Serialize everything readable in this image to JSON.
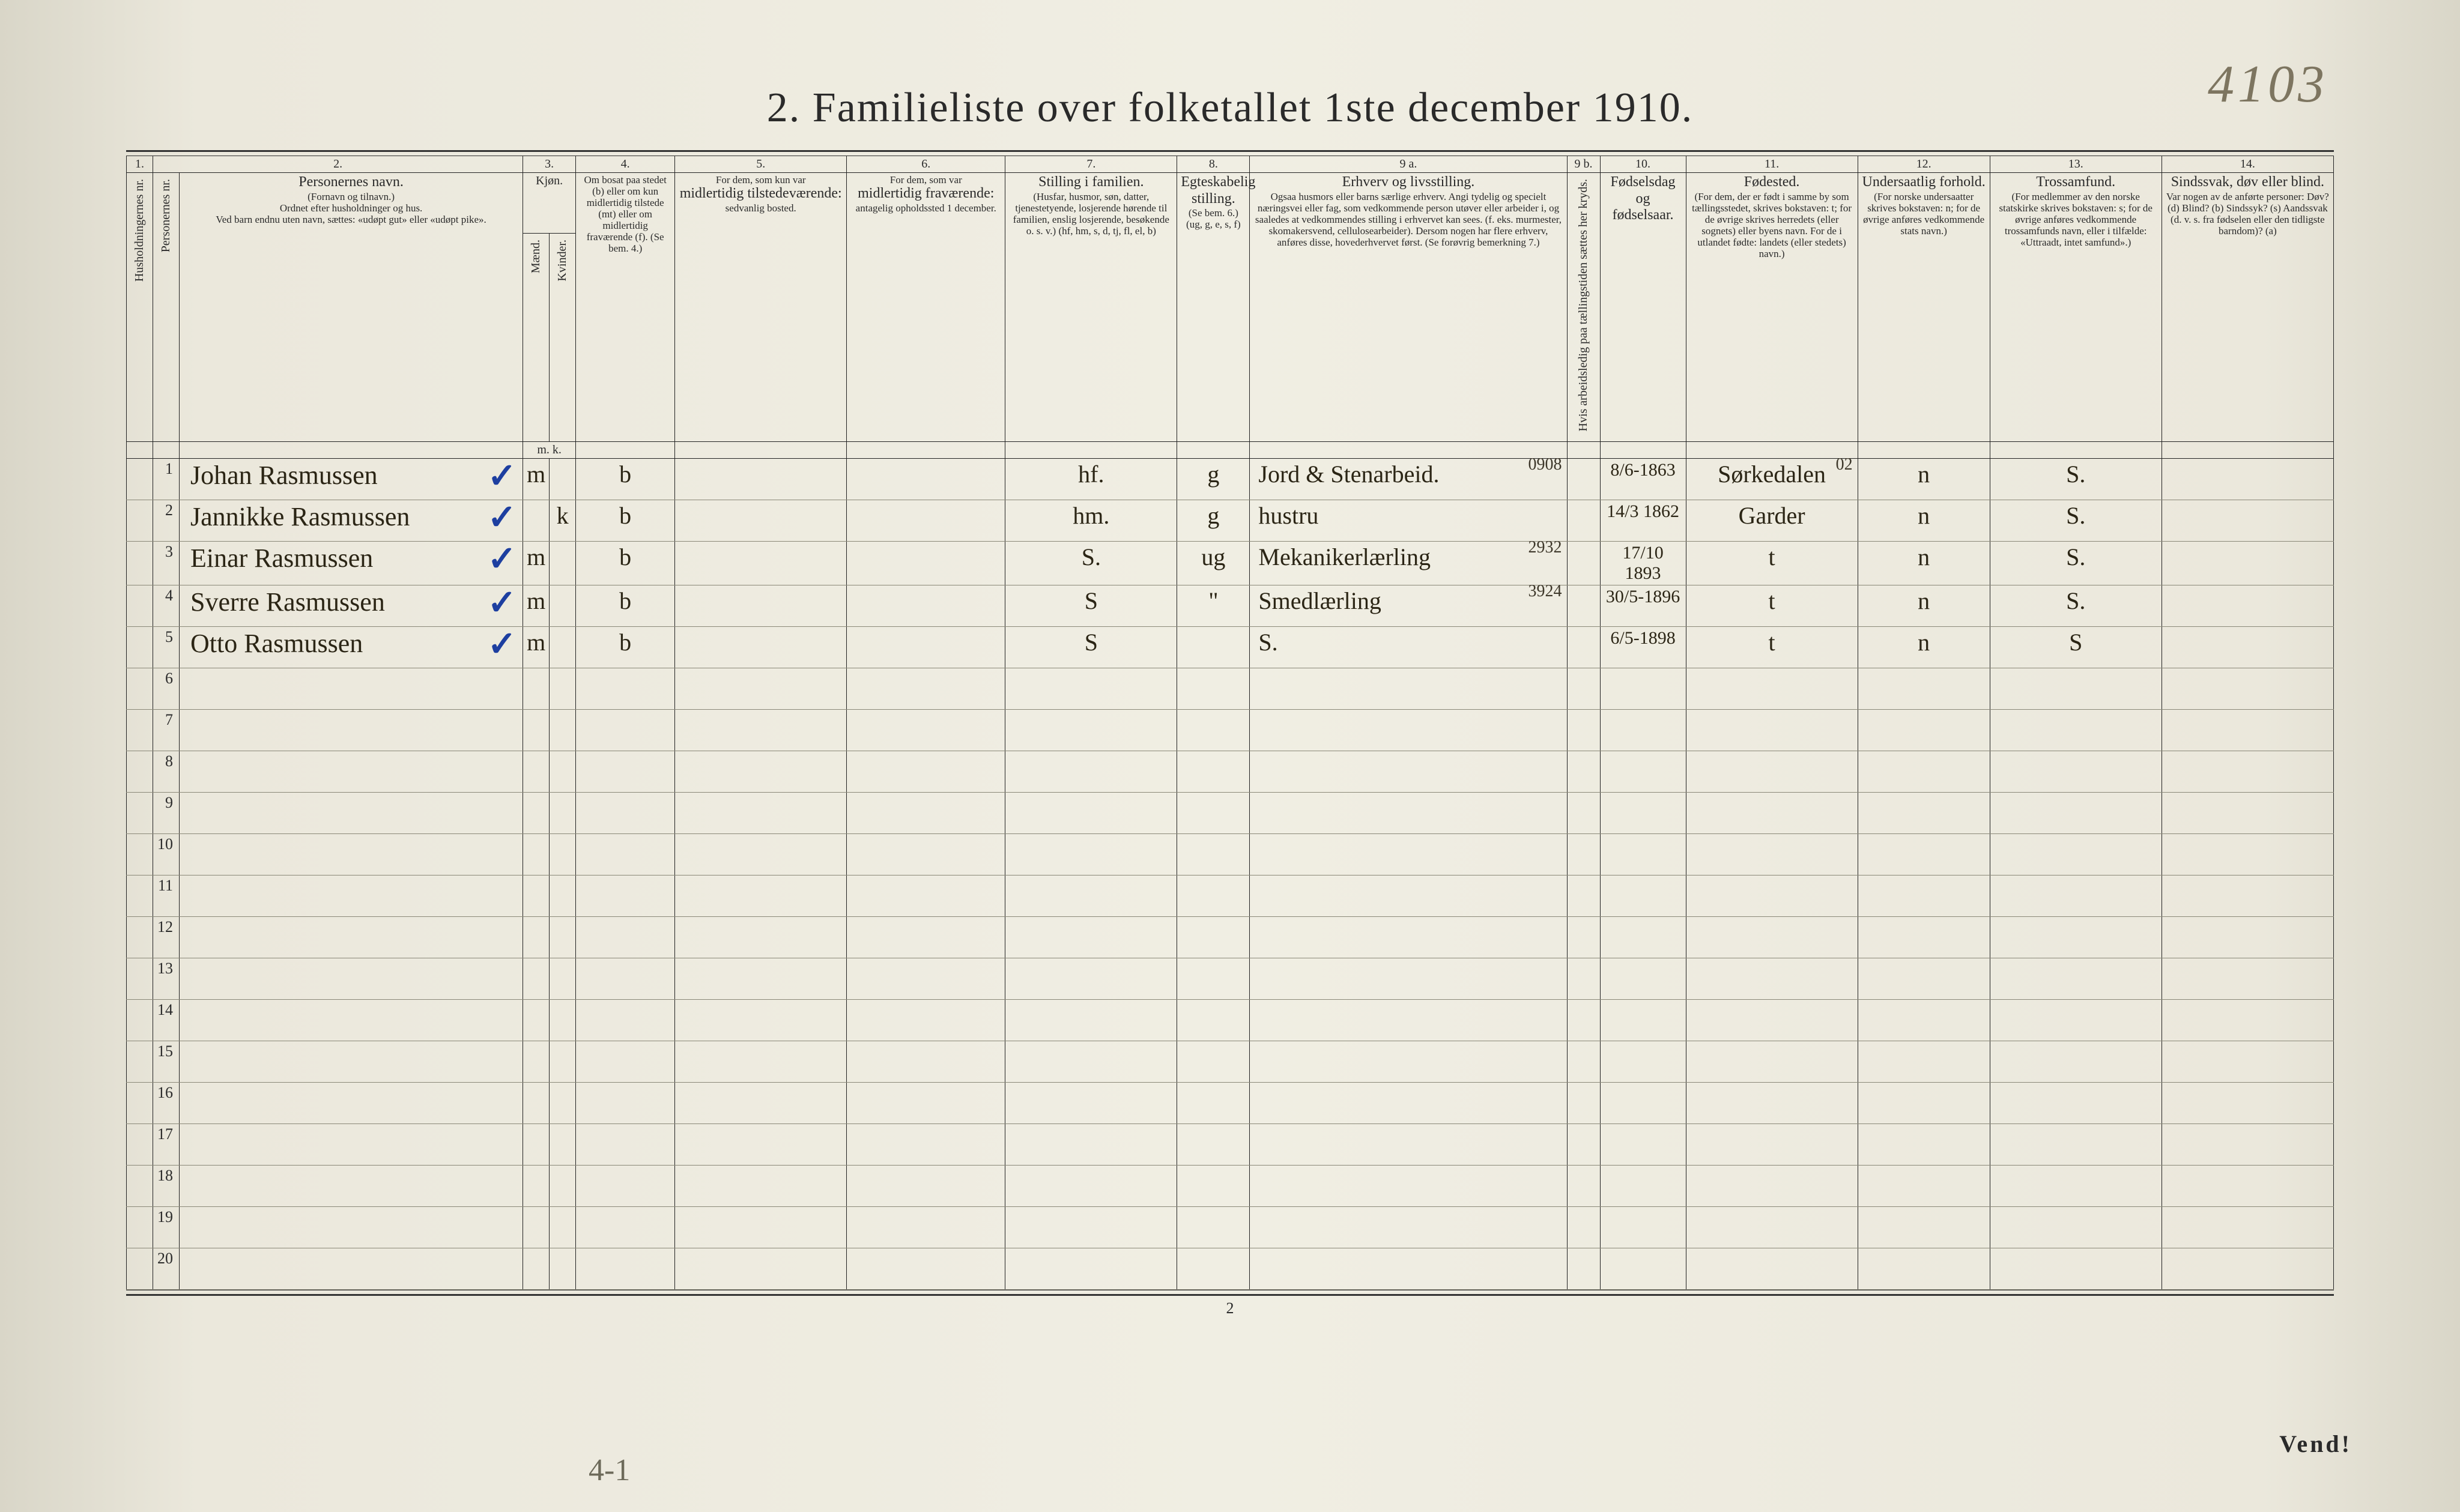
{
  "title": "2.  Familieliste over folketallet 1ste december 1910.",
  "annotation_topright": "4103",
  "annotation_bottom": "4-1",
  "page_number": "2",
  "vend": "Vend!",
  "col_numbers": [
    "1.",
    "2.",
    "3.",
    "4.",
    "5.",
    "6.",
    "7.",
    "8.",
    "9 a.",
    "9 b.",
    "10.",
    "11.",
    "12.",
    "13.",
    "14."
  ],
  "headers": {
    "c1": "Husholdningernes nr.",
    "c2a": "Personernes nr.",
    "c2": "Personernes navn.",
    "c2s1": "(Fornavn og tilnavn.)",
    "c2s2": "Ordnet efter husholdninger og hus.",
    "c2s3": "Ved barn endnu uten navn, sættes: «udøpt gut» eller «udøpt pike».",
    "c3": "Kjøn.",
    "c3m": "Mænd.",
    "c3k": "Kvinder.",
    "c3mk": "m.  k.",
    "c4": "Om bosat paa stedet (b) eller om kun midlertidig tilstede (mt) eller om midlertidig fraværende (f). (Se bem. 4.)",
    "c5a": "For dem, som kun var",
    "c5b": "midlertidig tilstedeværende:",
    "c5c": "sedvanlig bosted.",
    "c6a": "For dem, som var",
    "c6b": "midlertidig fraværende:",
    "c6c": "antagelig opholdssted 1 december.",
    "c7": "Stilling i familien.",
    "c7s": "(Husfar, husmor, søn, datter, tjenestetyende, losjerende hørende til familien, enslig losjerende, besøkende o. s. v.) (hf, hm, s, d, tj, fl, el, b)",
    "c8": "Egteskabelig stilling.",
    "c8s": "(Se bem. 6.) (ug, g, e, s, f)",
    "c9": "Erhverv og livsstilling.",
    "c9s": "Ogsaa husmors eller barns særlige erhverv. Angi tydelig og specielt næringsvei eller fag, som vedkommende person utøver eller arbeider i, og saaledes at vedkommendes stilling i erhvervet kan sees. (f. eks. murmester, skomakersvend, cellulosearbeider). Dersom nogen har flere erhverv, anføres disse, hovederhvervet først. (Se forøvrig bemerkning 7.)",
    "c9b": "Hvis arbeidsledig paa tællingstiden sættes her kryds.",
    "c10": "Fødselsdag og fødselsaar.",
    "c11": "Fødested.",
    "c11s": "(For dem, der er født i samme by som tællingsstedet, skrives bokstaven: t; for de øvrige skrives herredets (eller sognets) eller byens navn. For de i utlandet fødte: landets (eller stedets) navn.)",
    "c12": "Undersaatlig forhold.",
    "c12s": "(For norske undersaatter skrives bokstaven: n; for de øvrige anføres vedkommende stats navn.)",
    "c13": "Trossamfund.",
    "c13s": "(For medlemmer av den norske statskirke skrives bokstaven: s; for de øvrige anføres vedkommende trossamfunds navn, eller i tilfælde: «Uttraadt, intet samfund».)",
    "c14": "Sindssvak, døv eller blind.",
    "c14s": "Var nogen av de anførte personer: Døv? (d)  Blind? (b)  Sindssyk? (s)  Aandssvak (d. v. s. fra fødselen eller den tidligste barndom)? (a)"
  },
  "rows": [
    {
      "n": "1",
      "name": "Johan Rasmussen",
      "sex": "m",
      "res": "b",
      "fam": "hf.",
      "mar": "g",
      "occ": "Jord & Stenarbeid.",
      "occ_sup": "0908",
      "born": "8/6-1863",
      "place": "Sørkedalen",
      "place_sup": "02",
      "nat": "n",
      "rel": "S."
    },
    {
      "n": "2",
      "name": "Jannikke Rasmussen",
      "sex": "k",
      "res": "b",
      "fam": "hm.",
      "mar": "g",
      "occ": "hustru",
      "occ_sup": "",
      "born": "14/3 1862",
      "place": "Garder",
      "place_sup": "",
      "nat": "n",
      "rel": "S."
    },
    {
      "n": "3",
      "name": "Einar Rasmussen",
      "sex": "m",
      "res": "b",
      "fam": "S.",
      "mar": "ug",
      "occ": "Mekanikerlærling",
      "occ_sup": "2932",
      "born": "17/10 1893",
      "place": "t",
      "place_sup": "",
      "nat": "n",
      "rel": "S."
    },
    {
      "n": "4",
      "name": "Sverre Rasmussen",
      "sex": "m",
      "res": "b",
      "fam": "S",
      "mar": "\"",
      "occ": "Smedlærling",
      "occ_sup": "3924",
      "born": "30/5-1896",
      "place": "t",
      "place_sup": "",
      "nat": "n",
      "rel": "S."
    },
    {
      "n": "5",
      "name": "Otto Rasmussen",
      "sex": "m",
      "res": "b",
      "fam": "S",
      "mar": "",
      "occ": "S.",
      "occ_sup": "",
      "born": "6/5-1898",
      "place": "t",
      "place_sup": "",
      "nat": "n",
      "rel": "S"
    }
  ],
  "empty_rows": [
    "6",
    "7",
    "8",
    "9",
    "10",
    "11",
    "12",
    "13",
    "14",
    "15",
    "16",
    "17",
    "18",
    "19",
    "20"
  ]
}
